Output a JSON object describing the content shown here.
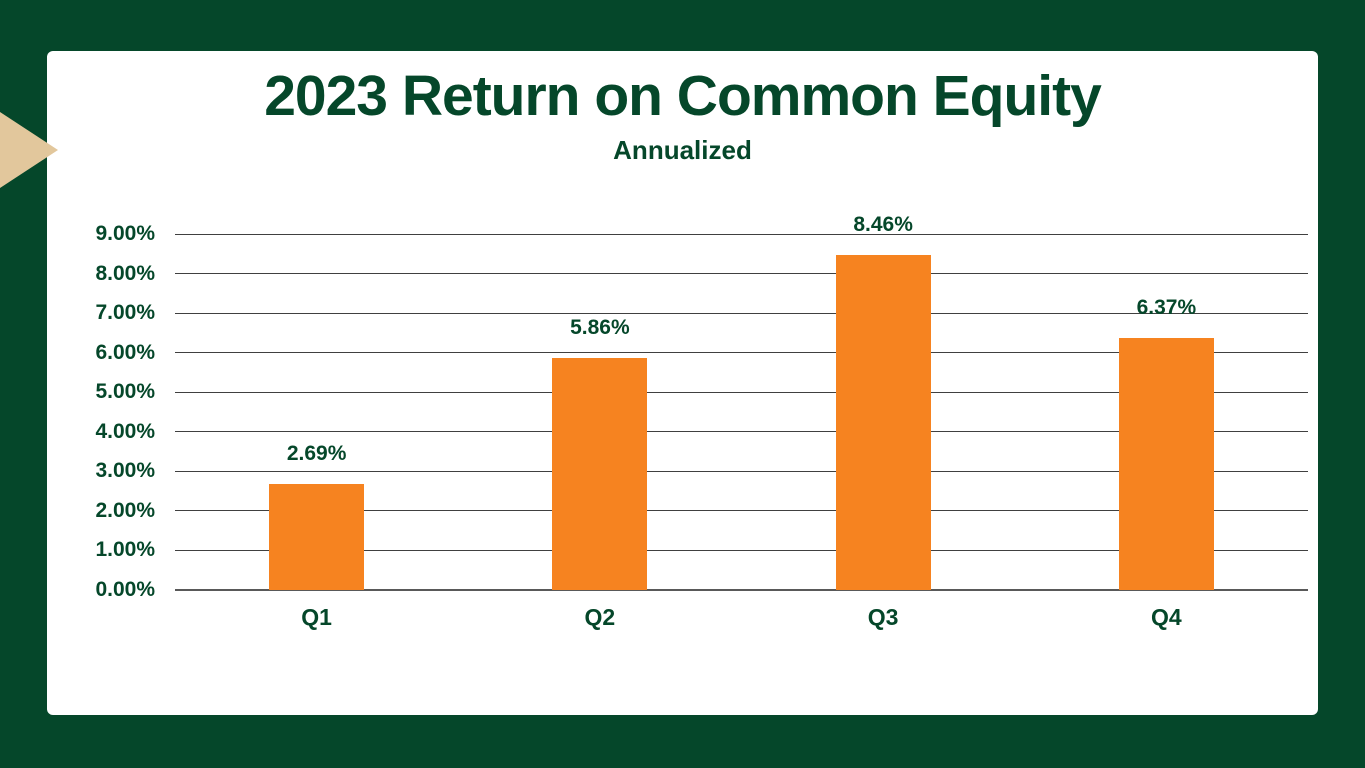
{
  "slide": {
    "title": "2023 Return on Common Equity",
    "subtitle": "Annualized"
  },
  "colors": {
    "background_green": "#05472A",
    "text_green": "#05472A",
    "bar_orange": "#F68320",
    "accent_tan": "#E2C79C",
    "gridline_gray": "#404040",
    "axis_gray": "#595959",
    "panel_white": "#FFFFFF"
  },
  "chart_data": {
    "type": "bar",
    "title": "2023 Return on Common Equity",
    "subtitle": "Annualized",
    "categories": [
      "Q1",
      "Q2",
      "Q3",
      "Q4"
    ],
    "values": [
      2.69,
      5.86,
      8.46,
      6.37
    ],
    "data_labels": [
      "2.69%",
      "5.86%",
      "8.46%",
      "6.37%"
    ],
    "y_tick_labels": [
      "0.00%",
      "1.00%",
      "2.00%",
      "3.00%",
      "4.00%",
      "5.00%",
      "6.00%",
      "7.00%",
      "8.00%",
      "9.00%"
    ],
    "ylim": [
      0,
      9
    ],
    "y_step": 1,
    "xlabel": "",
    "ylabel": "",
    "grid": true,
    "legend": false,
    "bar_color": "#F68320",
    "label_position": "outside-end"
  }
}
